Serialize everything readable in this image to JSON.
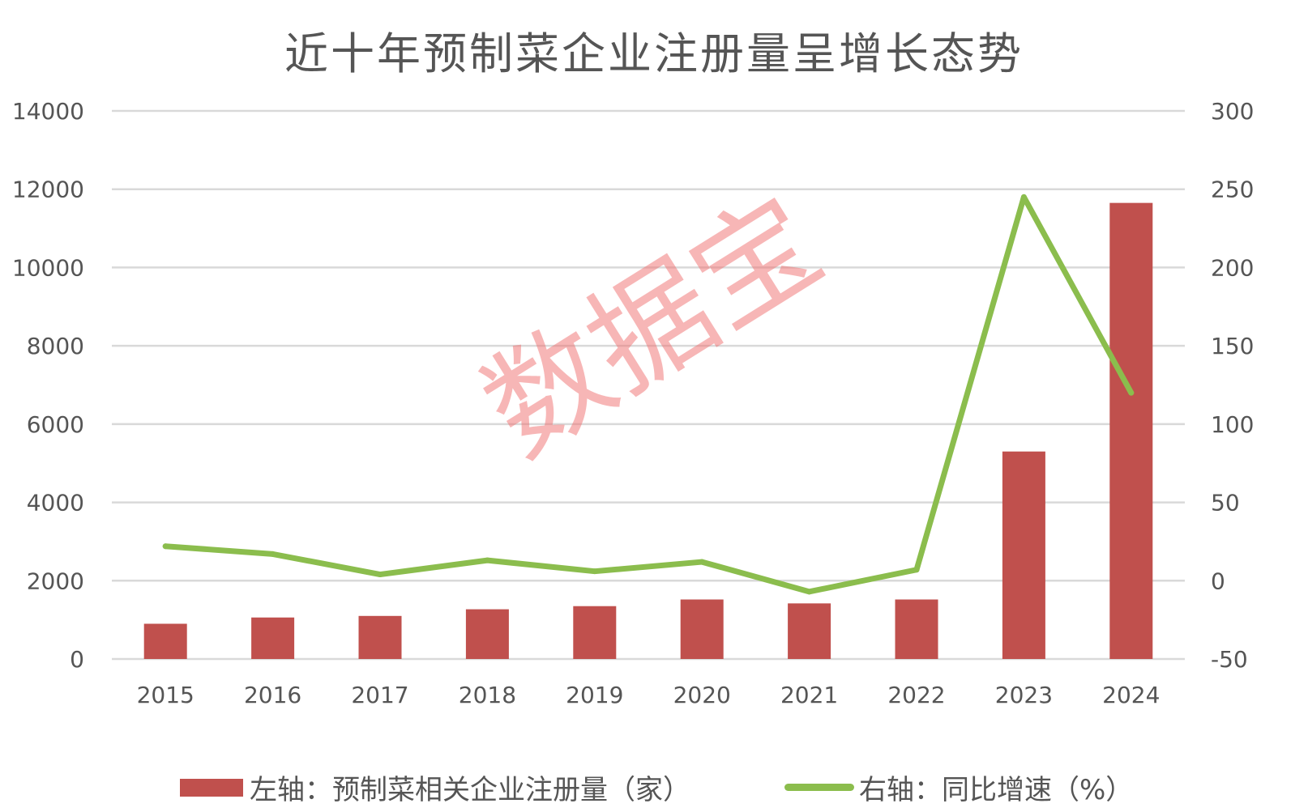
{
  "chart_data": {
    "type": "bar",
    "title": "近十年预制菜企业注册量呈增长态势",
    "categories": [
      "2015",
      "2016",
      "2017",
      "2018",
      "2019",
      "2020",
      "2021",
      "2022",
      "2023",
      "2024"
    ],
    "series": [
      {
        "name": "左轴：预制菜相关企业注册量（家）",
        "type": "bar",
        "axis": "left",
        "color": "#c0504d",
        "values": [
          900,
          1060,
          1100,
          1270,
          1350,
          1520,
          1420,
          1520,
          5300,
          11650
        ]
      },
      {
        "name": "右轴：同比增速（%）",
        "type": "line",
        "axis": "right",
        "color": "#8bbd4d",
        "values": [
          22,
          17,
          4,
          13,
          6,
          12,
          -7,
          7,
          245,
          120
        ]
      }
    ],
    "y_left": {
      "ylim": [
        0,
        14000
      ],
      "ticks": [
        "0",
        "2000",
        "4000",
        "6000",
        "8000",
        "10000",
        "12000",
        "14000"
      ]
    },
    "y_right": {
      "ylim": [
        -50,
        300
      ],
      "ticks": [
        "-50",
        "0",
        "50",
        "100",
        "150",
        "200",
        "250",
        "300"
      ]
    },
    "grid": true,
    "legend_position": "bottom"
  },
  "watermark": "数据宝"
}
